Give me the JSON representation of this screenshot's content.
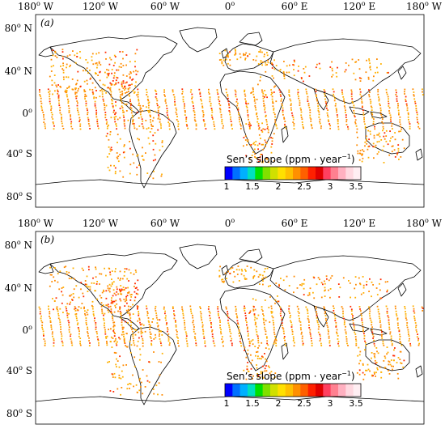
{
  "panels": [
    {
      "label": "(a)",
      "lon_labels": [
        {
          "deg": "180",
          "sup": "o",
          "hem": " W"
        },
        {
          "deg": "120",
          "sup": "o",
          "hem": " W"
        },
        {
          "deg": "60",
          "sup": "o",
          "hem": " W"
        },
        {
          "deg": "0",
          "sup": "o",
          "hem": ""
        },
        {
          "deg": "60",
          "sup": "o",
          "hem": " E"
        },
        {
          "deg": "120",
          "sup": "o",
          "hem": " E"
        },
        {
          "deg": "180",
          "sup": "o",
          "hem": " W"
        }
      ],
      "lat_labels": [
        {
          "deg": "80",
          "sup": "o",
          "hem": " N"
        },
        {
          "deg": "40",
          "sup": "o",
          "hem": " N"
        },
        {
          "deg": "0",
          "sup": "o",
          "hem": ""
        },
        {
          "deg": "40",
          "sup": "o",
          "hem": " S"
        },
        {
          "deg": "80",
          "sup": "o",
          "hem": " S"
        }
      ],
      "colorbar_title": "Sen’s slope (ppm · year",
      "colorbar_title_exp": "−1",
      "colorbar_title_close": ")",
      "colorbar_ticks": [
        "1",
        "1.5",
        "2",
        "2.5",
        "3",
        "3.5"
      ]
    },
    {
      "label": "(b)",
      "lon_labels": [
        {
          "deg": "180",
          "sup": "o",
          "hem": " W"
        },
        {
          "deg": "120",
          "sup": "o",
          "hem": " W"
        },
        {
          "deg": "60",
          "sup": "o",
          "hem": " W"
        },
        {
          "deg": "0",
          "sup": "o",
          "hem": ""
        },
        {
          "deg": "60",
          "sup": "o",
          "hem": " E"
        },
        {
          "deg": "120",
          "sup": "o",
          "hem": " E"
        },
        {
          "deg": "180",
          "sup": "o",
          "hem": " W"
        }
      ],
      "lat_labels": [
        {
          "deg": "80",
          "sup": "o",
          "hem": " N"
        },
        {
          "deg": "40",
          "sup": "o",
          "hem": " N"
        },
        {
          "deg": "0",
          "sup": "o",
          "hem": ""
        },
        {
          "deg": "40",
          "sup": "o",
          "hem": " S"
        },
        {
          "deg": "80",
          "sup": "o",
          "hem": " S"
        }
      ],
      "colorbar_title": "Sen’s slope (ppm · year",
      "colorbar_title_exp": "−1",
      "colorbar_title_close": ")",
      "colorbar_ticks": [
        "1",
        "1.5",
        "2",
        "2.5",
        "3",
        "3.5"
      ]
    }
  ],
  "colorbar": {
    "range": [
      1,
      3.5
    ],
    "colors": [
      "#0000ff",
      "#0070ff",
      "#00b0ff",
      "#00e0c0",
      "#00e000",
      "#80e000",
      "#d0e000",
      "#ffe000",
      "#ffc000",
      "#ff9000",
      "#ff6000",
      "#ff2000",
      "#e00000",
      "#ff4060",
      "#ff8090",
      "#ffb0c0",
      "#ffd8e0",
      "#ffeef2"
    ]
  },
  "colors": {
    "high": "#ff2a00",
    "mid": "#ff8a00",
    "low": "#ffb000",
    "coast": "#000000"
  }
}
